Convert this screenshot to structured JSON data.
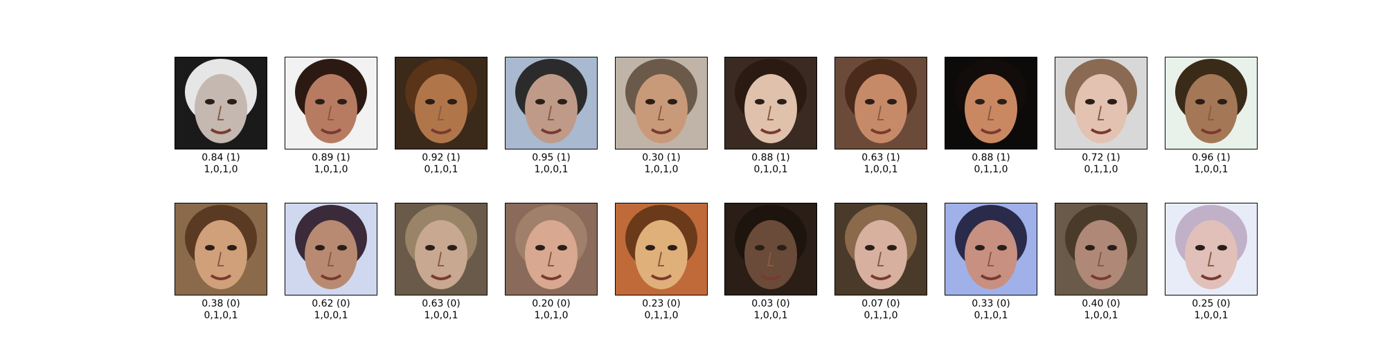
{
  "rows": [
    {
      "kind": "real",
      "items": [
        {
          "score": "0.84 (1)",
          "attrs": "1,0,1,0",
          "tone": "#c4b8b0",
          "hair": "#e6e6e6",
          "bg": "#1a1a1a"
        },
        {
          "score": "0.89 (1)",
          "attrs": "1,0,1,0",
          "tone": "#b77b62",
          "hair": "#2c1a12",
          "bg": "#f2f2f2"
        },
        {
          "score": "0.92 (1)",
          "attrs": "0,1,0,1",
          "tone": "#b0764a",
          "hair": "#5a3418",
          "bg": "#3b2a1a"
        },
        {
          "score": "0.95 (1)",
          "attrs": "1,0,0,1",
          "tone": "#c09a88",
          "hair": "#2b2b2b",
          "bg": "#a9b9cf"
        },
        {
          "score": "0.30 (1)",
          "attrs": "1,0,1,0",
          "tone": "#c99a7a",
          "hair": "#6b5a4a",
          "bg": "#c0b4a8"
        },
        {
          "score": "0.88 (1)",
          "attrs": "0,1,0,1",
          "tone": "#e0c2ac",
          "hair": "#2a1a12",
          "bg": "#3a2a22"
        },
        {
          "score": "0.63 (1)",
          "attrs": "1,0,0,1",
          "tone": "#c68a68",
          "hair": "#4a2a1a",
          "bg": "#6b4a3a"
        },
        {
          "score": "0.88 (1)",
          "attrs": "0,1,1,0",
          "tone": "#c98862",
          "hair": "#120c0a",
          "bg": "#0d0b0a"
        },
        {
          "score": "0.72 (1)",
          "attrs": "0,1,1,0",
          "tone": "#e3c2b2",
          "hair": "#8a6a52",
          "bg": "#d8d8d8"
        },
        {
          "score": "0.96 (1)",
          "attrs": "1,0,0,1",
          "tone": "#a47856",
          "hair": "#3a2a18",
          "bg": "#e8f2ea"
        }
      ]
    },
    {
      "kind": "generated",
      "items": [
        {
          "score": "0.38 (0)",
          "attrs": "0,1,0,1",
          "tone": "#d0a07a",
          "hair": "#5a3a22",
          "bg": "#8a6a4a"
        },
        {
          "score": "0.62 (0)",
          "attrs": "1,0,0,1",
          "tone": "#b88a72",
          "hair": "#3a2a3a",
          "bg": "#d0d8f0"
        },
        {
          "score": "0.63 (0)",
          "attrs": "1,0,0,1",
          "tone": "#c8a890",
          "hair": "#9a8468",
          "bg": "#6a5a4a"
        },
        {
          "score": "0.20 (0)",
          "attrs": "1,0,1,0",
          "tone": "#d8a890",
          "hair": "#a0806a",
          "bg": "#8a6a5a"
        },
        {
          "score": "0.23 (0)",
          "attrs": "0,1,1,0",
          "tone": "#e0b07a",
          "hair": "#6a3a1a",
          "bg": "#c06a3a"
        },
        {
          "score": "0.03 (0)",
          "attrs": "1,0,0,1",
          "tone": "#6a4a38",
          "hair": "#1e140e",
          "bg": "#2a1e16"
        },
        {
          "score": "0.07 (0)",
          "attrs": "0,1,1,0",
          "tone": "#d8b0a0",
          "hair": "#8a6a4a",
          "bg": "#4a3a2a"
        },
        {
          "score": "0.33 (0)",
          "attrs": "0,1,0,1",
          "tone": "#c89080",
          "hair": "#2a2a4a",
          "bg": "#a0b0e8"
        },
        {
          "score": "0.40 (0)",
          "attrs": "1,0,0,1",
          "tone": "#b08878",
          "hair": "#4a3a2a",
          "bg": "#6a5a4a"
        },
        {
          "score": "0.25 (0)",
          "attrs": "1,0,0,1",
          "tone": "#e0c0b8",
          "hair": "#c0b0c8",
          "bg": "#e8ecf8"
        }
      ]
    }
  ]
}
